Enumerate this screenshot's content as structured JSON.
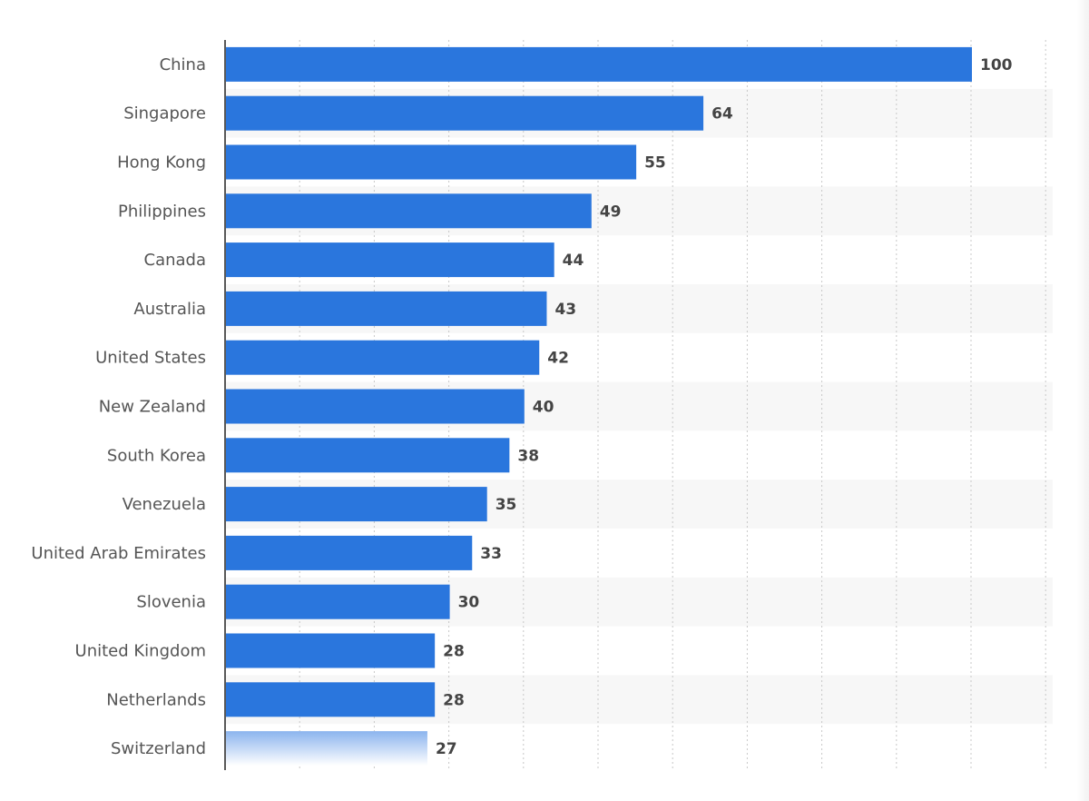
{
  "chart_data": {
    "type": "bar",
    "orientation": "horizontal",
    "categories": [
      "China",
      "Singapore",
      "Hong Kong",
      "Philippines",
      "Canada",
      "Australia",
      "United States",
      "New Zealand",
      "South Korea",
      "Venezuela",
      "United Arab Emirates",
      "Slovenia",
      "United Kingdom",
      "Netherlands",
      "Switzerland"
    ],
    "values": [
      100,
      64,
      55,
      49,
      44,
      43,
      42,
      40,
      38,
      35,
      33,
      30,
      28,
      28,
      27
    ],
    "title": "",
    "xlabel": "",
    "ylabel": "",
    "xlim": [
      0,
      110
    ],
    "grid": true,
    "bar_color": "#2A76DD"
  }
}
